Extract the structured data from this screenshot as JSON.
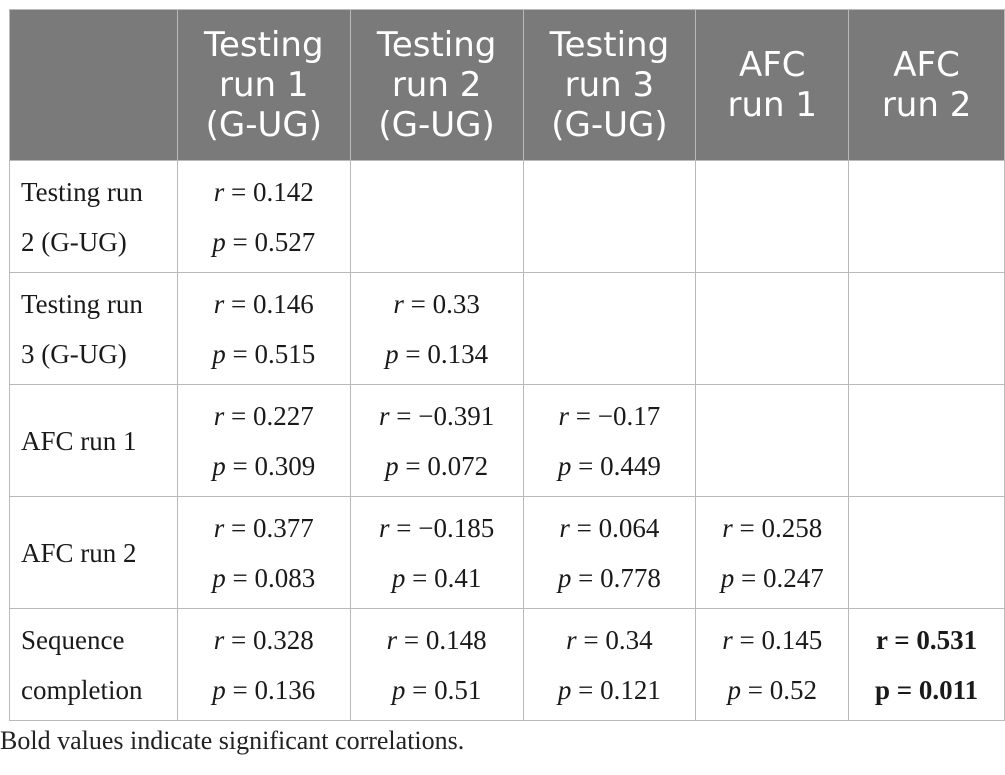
{
  "table": {
    "column_headers": [
      [
        "Testing",
        "run 1",
        "(G-UG)"
      ],
      [
        "Testing",
        "run 2",
        "(G-UG)"
      ],
      [
        "Testing",
        "run 3",
        "(G-UG)"
      ],
      [
        "AFC",
        "run 1"
      ],
      [
        "AFC",
        "run 2"
      ]
    ],
    "rows": [
      {
        "label": [
          "Testing run",
          "2 (G-UG)"
        ],
        "cells": [
          {
            "r": "0.142",
            "p": "0.527"
          },
          null,
          null,
          null,
          null
        ]
      },
      {
        "label": [
          "Testing run",
          "3 (G-UG)"
        ],
        "cells": [
          {
            "r": "0.146",
            "p": "0.515"
          },
          {
            "r": "0.33",
            "p": "0.134"
          },
          null,
          null,
          null
        ]
      },
      {
        "label": [
          "AFC run 1"
        ],
        "cells": [
          {
            "r": "0.227",
            "p": "0.309"
          },
          {
            "r": "−0.391",
            "p": "0.072"
          },
          {
            "r": "−0.17",
            "p": "0.449"
          },
          null,
          null
        ]
      },
      {
        "label": [
          "AFC run 2"
        ],
        "cells": [
          {
            "r": "0.377",
            "p": "0.083"
          },
          {
            "r": "−0.185",
            "p": "0.41"
          },
          {
            "r": "0.064",
            "p": "0.778"
          },
          {
            "r": "0.258",
            "p": "0.247"
          },
          null
        ]
      },
      {
        "label": [
          "Sequence",
          "completion"
        ],
        "cells": [
          {
            "r": "0.328",
            "p": "0.136"
          },
          {
            "r": "0.148",
            "p": "0.51"
          },
          {
            "r": "0.34",
            "p": "0.121"
          },
          {
            "r": "0.145",
            "p": "0.52"
          },
          {
            "r": "0.531",
            "p": "0.011",
            "significant": true
          }
        ]
      }
    ]
  },
  "footnote": "Bold values indicate significant correlations."
}
